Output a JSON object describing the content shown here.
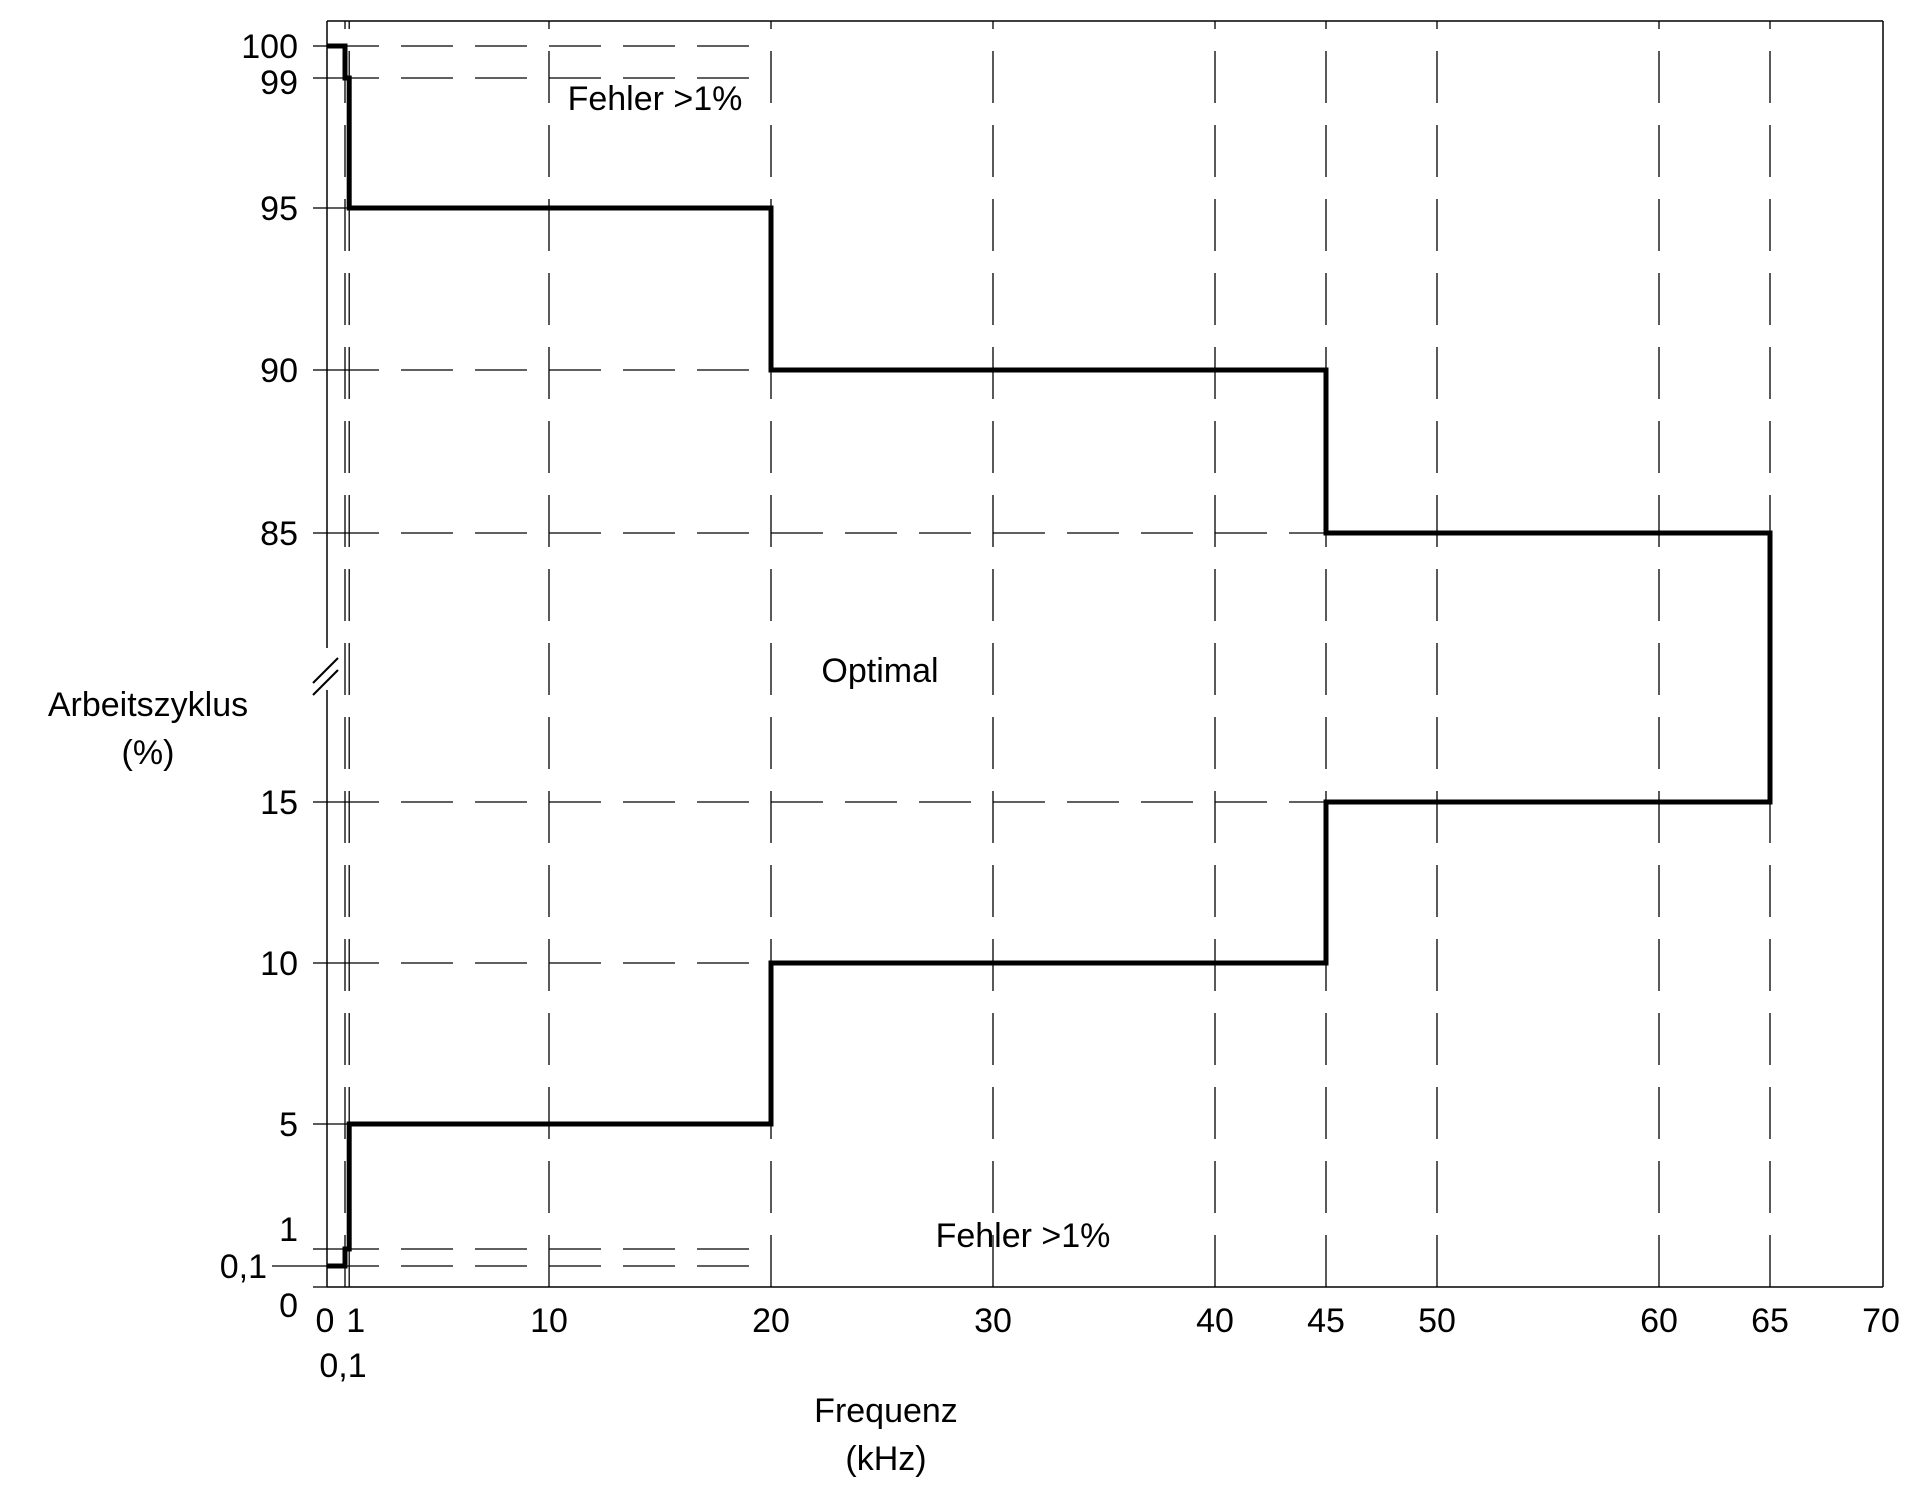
{
  "chart_data": {
    "type": "line",
    "title": "",
    "xlabel": [
      "Frequenz",
      "(kHz)"
    ],
    "ylabel": [
      "Arbeitszyklus",
      "(%)"
    ],
    "x_ticks": [
      "0",
      "0,1",
      "1",
      "10",
      "20",
      "30",
      "40",
      "45",
      "50",
      "60",
      "65",
      "70"
    ],
    "y_ticks": [
      "0",
      "0,1",
      "1",
      "5",
      "10",
      "15",
      "85",
      "90",
      "95",
      "99",
      "100"
    ],
    "y_axis_break": true,
    "grid": "dashed",
    "annotations": [
      {
        "text": "Fehler >1%",
        "x": 10,
        "y": 97.5
      },
      {
        "text": "Optimal",
        "x": 25,
        "y": 50
      },
      {
        "text": "Fehler >1%",
        "x": 30,
        "y": 1.5
      }
    ],
    "series": [
      {
        "x": [
          0,
          0.1,
          0.1,
          1,
          1,
          20,
          20,
          45,
          45,
          65,
          65
        ],
        "y": [
          100,
          100,
          99,
          99,
          95,
          95,
          90,
          90,
          85,
          85,
          50
        ]
      },
      {
        "x": [
          0,
          0.1,
          0.1,
          1,
          1,
          20,
          20,
          45,
          45,
          65,
          65
        ],
        "y": [
          0.1,
          0.1,
          1,
          1,
          5,
          5,
          10,
          10,
          15,
          15,
          50
        ]
      }
    ],
    "colors": {
      "line": "#000000",
      "grid": "#000000"
    }
  }
}
